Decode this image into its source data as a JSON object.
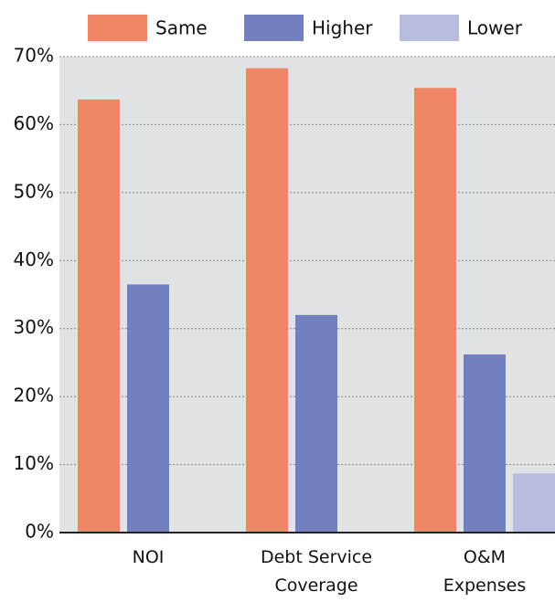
{
  "chart_data": {
    "type": "bar",
    "categories": [
      "NOI",
      "Debt Service\nCoverage",
      "O&M\nExpenses"
    ],
    "series": [
      {
        "name": "Same",
        "color": "#ef8766",
        "values": [
          63.7,
          68.3,
          65.4
        ]
      },
      {
        "name": "Higher",
        "color": "#7380c0",
        "values": [
          36.5,
          32.0,
          26.2
        ]
      },
      {
        "name": "Lower",
        "color": "#b8bde0",
        "values": [
          0,
          0,
          8.7
        ]
      }
    ],
    "ylim": [
      0,
      70
    ],
    "yticks": [
      {
        "value": 0,
        "label": "0%"
      },
      {
        "value": 10,
        "label": "10%"
      },
      {
        "value": 20,
        "label": "20%"
      },
      {
        "value": 30,
        "label": "30%"
      },
      {
        "value": 40,
        "label": "40%"
      },
      {
        "value": 50,
        "label": "50%"
      },
      {
        "value": 60,
        "label": "60%"
      },
      {
        "value": 70,
        "label": "70%"
      }
    ],
    "grid": true
  }
}
